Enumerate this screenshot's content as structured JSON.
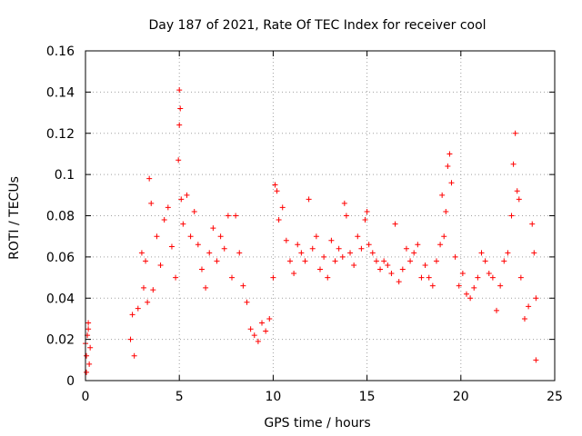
{
  "chart_data": {
    "type": "scatter",
    "title": "Day 187 of 2021, Rate Of TEC Index for receiver cool",
    "xlabel": "GPS time / hours",
    "ylabel": "ROTI / TECUs",
    "xlim": [
      0,
      25
    ],
    "ylim": [
      0,
      0.16
    ],
    "x_ticks": [
      0,
      5,
      10,
      15,
      20,
      25
    ],
    "x_tick_labels": [
      "0",
      "5",
      "10",
      "15",
      "20",
      "25"
    ],
    "y_ticks": [
      0,
      0.02,
      0.04,
      0.06,
      0.08,
      0.1,
      0.12,
      0.14,
      0.16
    ],
    "y_tick_labels": [
      "0",
      "0.02",
      "0.04",
      "0.06",
      "0.08",
      "0.1",
      "0.12",
      "0.14",
      "0.16"
    ],
    "grid": true,
    "marker": "+",
    "color": "#ff0000",
    "series": [
      {
        "name": "ROTI",
        "points": [
          [
            0.0,
            0.018
          ],
          [
            0.05,
            0.012
          ],
          [
            0.1,
            0.022
          ],
          [
            0.15,
            0.028
          ],
          [
            0.2,
            0.008
          ],
          [
            0.25,
            0.016
          ],
          [
            0.05,
            0.004
          ],
          [
            0.15,
            0.025
          ],
          [
            2.4,
            0.02
          ],
          [
            2.5,
            0.032
          ],
          [
            2.6,
            0.012
          ],
          [
            2.8,
            0.035
          ],
          [
            3.0,
            0.062
          ],
          [
            3.1,
            0.045
          ],
          [
            3.2,
            0.058
          ],
          [
            3.3,
            0.038
          ],
          [
            3.4,
            0.098
          ],
          [
            3.5,
            0.086
          ],
          [
            3.6,
            0.044
          ],
          [
            3.8,
            0.07
          ],
          [
            4.0,
            0.056
          ],
          [
            4.2,
            0.078
          ],
          [
            4.4,
            0.084
          ],
          [
            4.6,
            0.065
          ],
          [
            4.8,
            0.05
          ],
          [
            4.95,
            0.107
          ],
          [
            5.0,
            0.141
          ],
          [
            5.05,
            0.132
          ],
          [
            5.0,
            0.124
          ],
          [
            5.1,
            0.088
          ],
          [
            5.2,
            0.076
          ],
          [
            5.4,
            0.09
          ],
          [
            5.6,
            0.07
          ],
          [
            5.8,
            0.082
          ],
          [
            6.0,
            0.066
          ],
          [
            6.2,
            0.054
          ],
          [
            6.4,
            0.045
          ],
          [
            6.6,
            0.062
          ],
          [
            6.8,
            0.074
          ],
          [
            7.0,
            0.058
          ],
          [
            7.2,
            0.07
          ],
          [
            7.4,
            0.064
          ],
          [
            7.6,
            0.08
          ],
          [
            7.8,
            0.05
          ],
          [
            8.0,
            0.08
          ],
          [
            8.2,
            0.062
          ],
          [
            8.4,
            0.046
          ],
          [
            8.6,
            0.038
          ],
          [
            8.8,
            0.025
          ],
          [
            9.0,
            0.022
          ],
          [
            9.2,
            0.019
          ],
          [
            9.4,
            0.028
          ],
          [
            9.6,
            0.024
          ],
          [
            9.8,
            0.03
          ],
          [
            10.0,
            0.05
          ],
          [
            10.1,
            0.095
          ],
          [
            10.2,
            0.092
          ],
          [
            10.3,
            0.078
          ],
          [
            10.5,
            0.084
          ],
          [
            10.7,
            0.068
          ],
          [
            10.9,
            0.058
          ],
          [
            11.1,
            0.052
          ],
          [
            11.3,
            0.066
          ],
          [
            11.5,
            0.062
          ],
          [
            11.7,
            0.058
          ],
          [
            11.9,
            0.088
          ],
          [
            12.1,
            0.064
          ],
          [
            12.3,
            0.07
          ],
          [
            12.5,
            0.054
          ],
          [
            12.7,
            0.06
          ],
          [
            12.9,
            0.05
          ],
          [
            13.1,
            0.068
          ],
          [
            13.3,
            0.058
          ],
          [
            13.5,
            0.064
          ],
          [
            13.7,
            0.06
          ],
          [
            13.8,
            0.086
          ],
          [
            13.9,
            0.08
          ],
          [
            14.1,
            0.062
          ],
          [
            14.3,
            0.056
          ],
          [
            14.5,
            0.07
          ],
          [
            14.7,
            0.064
          ],
          [
            14.9,
            0.078
          ],
          [
            15.0,
            0.082
          ],
          [
            15.1,
            0.066
          ],
          [
            15.3,
            0.062
          ],
          [
            15.5,
            0.058
          ],
          [
            15.7,
            0.054
          ],
          [
            15.9,
            0.058
          ],
          [
            16.1,
            0.056
          ],
          [
            16.3,
            0.052
          ],
          [
            16.5,
            0.076
          ],
          [
            16.7,
            0.048
          ],
          [
            16.9,
            0.054
          ],
          [
            17.1,
            0.064
          ],
          [
            17.3,
            0.058
          ],
          [
            17.5,
            0.062
          ],
          [
            17.7,
            0.066
          ],
          [
            17.9,
            0.05
          ],
          [
            18.1,
            0.056
          ],
          [
            18.3,
            0.05
          ],
          [
            18.5,
            0.046
          ],
          [
            18.7,
            0.058
          ],
          [
            18.9,
            0.066
          ],
          [
            19.0,
            0.09
          ],
          [
            19.1,
            0.07
          ],
          [
            19.2,
            0.082
          ],
          [
            19.3,
            0.104
          ],
          [
            19.4,
            0.11
          ],
          [
            19.5,
            0.096
          ],
          [
            19.7,
            0.06
          ],
          [
            19.9,
            0.046
          ],
          [
            20.1,
            0.052
          ],
          [
            20.3,
            0.042
          ],
          [
            20.5,
            0.04
          ],
          [
            20.7,
            0.045
          ],
          [
            20.9,
            0.05
          ],
          [
            21.1,
            0.062
          ],
          [
            21.3,
            0.058
          ],
          [
            21.5,
            0.052
          ],
          [
            21.7,
            0.05
          ],
          [
            21.9,
            0.034
          ],
          [
            22.1,
            0.046
          ],
          [
            22.3,
            0.058
          ],
          [
            22.5,
            0.062
          ],
          [
            22.7,
            0.08
          ],
          [
            22.8,
            0.105
          ],
          [
            22.9,
            0.12
          ],
          [
            23.0,
            0.092
          ],
          [
            23.1,
            0.088
          ],
          [
            23.2,
            0.05
          ],
          [
            23.4,
            0.03
          ],
          [
            23.6,
            0.036
          ],
          [
            23.8,
            0.076
          ],
          [
            23.9,
            0.062
          ],
          [
            24.0,
            0.04
          ],
          [
            24.0,
            0.01
          ]
        ]
      }
    ]
  }
}
